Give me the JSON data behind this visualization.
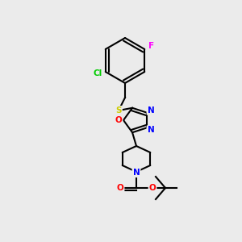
{
  "bg_color": "#ebebeb",
  "bond_color": "#000000",
  "bond_lw": 1.5,
  "atom_colors": {
    "N": "#0000ff",
    "O": "#ff0000",
    "S": "#cccc00",
    "Cl": "#00cc00",
    "F": "#ff00ff"
  },
  "font_size": 7.5
}
